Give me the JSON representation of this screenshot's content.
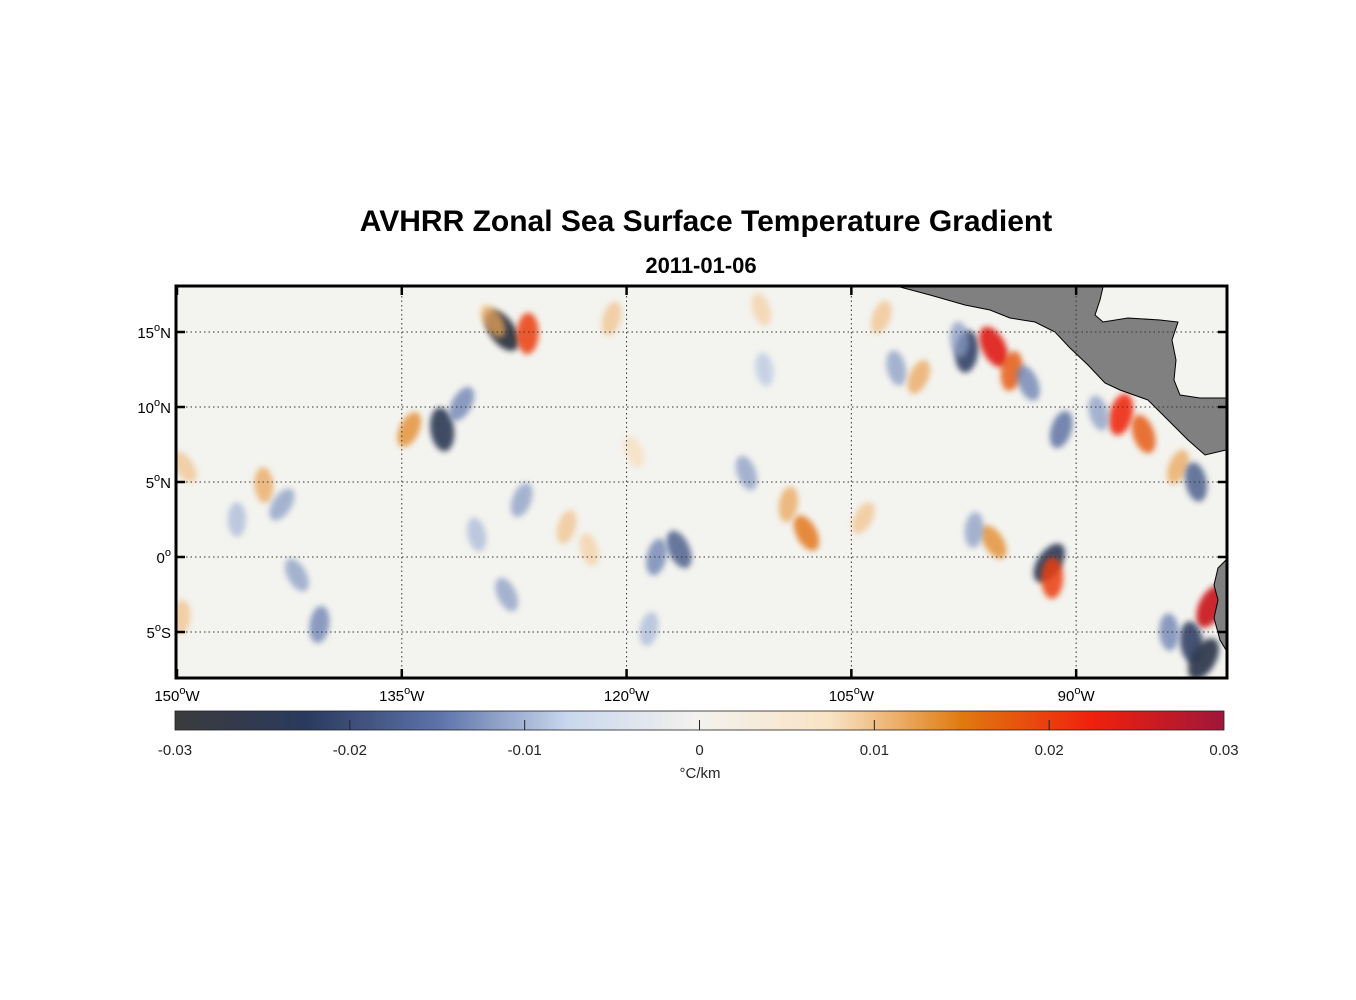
{
  "title": "AVHRR Zonal Sea Surface Temperature Gradient",
  "subtitle": "2011-01-06",
  "chart_data": {
    "type": "heatmap",
    "title": "AVHRR Zonal Sea Surface Temperature Gradient",
    "subtitle": "2011-01-06",
    "x_ticks": [
      {
        "value": -150,
        "text": "150",
        "deg": "o",
        "hem": "W"
      },
      {
        "value": -135,
        "text": "135",
        "deg": "o",
        "hem": "W"
      },
      {
        "value": -120,
        "text": "120",
        "deg": "o",
        "hem": "W"
      },
      {
        "value": -105,
        "text": "105",
        "deg": "o",
        "hem": "W"
      },
      {
        "value": -90,
        "text": "90",
        "deg": "o",
        "hem": "W"
      }
    ],
    "y_ticks": [
      {
        "value": 15,
        "text": "15",
        "deg": "o",
        "hem": "N"
      },
      {
        "value": 10,
        "text": "10",
        "deg": "o",
        "hem": "N"
      },
      {
        "value": 5,
        "text": "5",
        "deg": "o",
        "hem": "N"
      },
      {
        "value": 0,
        "text": "0",
        "deg": "o",
        "hem": ""
      },
      {
        "value": -5,
        "text": "5",
        "deg": "o",
        "hem": "S"
      }
    ],
    "xlim": [
      -150,
      -80
    ],
    "ylim": [
      -8,
      18
    ],
    "grid": true,
    "colorbar": {
      "orientation": "horizontal",
      "range": [
        -0.03,
        0.03
      ],
      "ticks": [
        "-0.03",
        "-0.02",
        "-0.01",
        "0",
        "0.01",
        "0.02",
        "0.03"
      ],
      "label": "°C/km",
      "colors": [
        "#3b3b3d",
        "#2a3a5e",
        "#5c72a8",
        "#c9d8ee",
        "#f4f2ee",
        "#f9e3c4",
        "#e07a10",
        "#f0200c",
        "#a0163a"
      ]
    },
    "features": [
      {
        "lon": -128.3,
        "lat": 15.1,
        "value": -0.028
      },
      {
        "lon": -126.6,
        "lat": 14.9,
        "value": 0.02
      },
      {
        "lon": -128.9,
        "lat": 15.7,
        "value": 0.012
      },
      {
        "lon": -97.3,
        "lat": 13.7,
        "value": -0.022
      },
      {
        "lon": -95.5,
        "lat": 14.0,
        "value": 0.024
      },
      {
        "lon": -94.3,
        "lat": 12.4,
        "value": 0.018
      },
      {
        "lon": -93.2,
        "lat": 11.6,
        "value": -0.014
      },
      {
        "lon": -87.0,
        "lat": 9.5,
        "value": 0.022
      },
      {
        "lon": -85.5,
        "lat": 8.2,
        "value": 0.018
      },
      {
        "lon": -91.0,
        "lat": 8.5,
        "value": -0.016
      },
      {
        "lon": -88.5,
        "lat": 9.6,
        "value": -0.012
      },
      {
        "lon": -83.2,
        "lat": 6.0,
        "value": 0.012
      },
      {
        "lon": -82.0,
        "lat": 5.0,
        "value": -0.018
      },
      {
        "lon": -81.0,
        "lat": -3.3,
        "value": 0.026
      },
      {
        "lon": -82.3,
        "lat": -5.7,
        "value": -0.022
      },
      {
        "lon": -81.5,
        "lat": -6.8,
        "value": -0.026
      },
      {
        "lon": -83.8,
        "lat": -5.0,
        "value": -0.014
      },
      {
        "lon": -91.8,
        "lat": -0.4,
        "value": -0.024
      },
      {
        "lon": -91.6,
        "lat": -1.4,
        "value": 0.02
      },
      {
        "lon": -95.5,
        "lat": 1.0,
        "value": 0.014
      },
      {
        "lon": -96.8,
        "lat": 1.8,
        "value": -0.012
      },
      {
        "lon": -108.0,
        "lat": 1.6,
        "value": 0.016
      },
      {
        "lon": -109.2,
        "lat": 3.5,
        "value": 0.012
      },
      {
        "lon": -116.5,
        "lat": 0.5,
        "value": -0.018
      },
      {
        "lon": -118.0,
        "lat": 0.0,
        "value": -0.014
      },
      {
        "lon": -112.0,
        "lat": 5.6,
        "value": -0.012
      },
      {
        "lon": -124.0,
        "lat": 2.0,
        "value": 0.01
      },
      {
        "lon": -122.5,
        "lat": 0.5,
        "value": 0.009
      },
      {
        "lon": -127.0,
        "lat": 3.8,
        "value": -0.012
      },
      {
        "lon": -130.0,
        "lat": 1.5,
        "value": -0.01
      },
      {
        "lon": -134.5,
        "lat": 8.5,
        "value": 0.014
      },
      {
        "lon": -132.3,
        "lat": 8.5,
        "value": -0.024
      },
      {
        "lon": -131.0,
        "lat": 10.2,
        "value": -0.014
      },
      {
        "lon": -144.2,
        "lat": 4.8,
        "value": 0.012
      },
      {
        "lon": -143.0,
        "lat": 3.5,
        "value": -0.012
      },
      {
        "lon": -146.0,
        "lat": 2.5,
        "value": -0.01
      },
      {
        "lon": -149.5,
        "lat": 6.0,
        "value": 0.01
      },
      {
        "lon": -149.7,
        "lat": -4.0,
        "value": 0.01
      },
      {
        "lon": -142.0,
        "lat": -1.2,
        "value": -0.012
      },
      {
        "lon": -140.5,
        "lat": -4.5,
        "value": -0.014
      },
      {
        "lon": -128.0,
        "lat": -2.5,
        "value": -0.012
      },
      {
        "lon": -118.5,
        "lat": -4.8,
        "value": -0.01
      },
      {
        "lon": -119.5,
        "lat": 7.0,
        "value": 0.008
      },
      {
        "lon": -121.0,
        "lat": 15.9,
        "value": 0.01
      },
      {
        "lon": -111.0,
        "lat": 16.5,
        "value": 0.009
      },
      {
        "lon": -103.0,
        "lat": 16.0,
        "value": 0.01
      },
      {
        "lon": -102.0,
        "lat": 12.6,
        "value": -0.012
      },
      {
        "lon": -100.5,
        "lat": 12.0,
        "value": 0.012
      },
      {
        "lon": -110.8,
        "lat": 12.5,
        "value": -0.009
      },
      {
        "lon": -104.2,
        "lat": 2.6,
        "value": 0.01
      },
      {
        "lon": -97.8,
        "lat": 14.5,
        "value": -0.012
      }
    ]
  }
}
